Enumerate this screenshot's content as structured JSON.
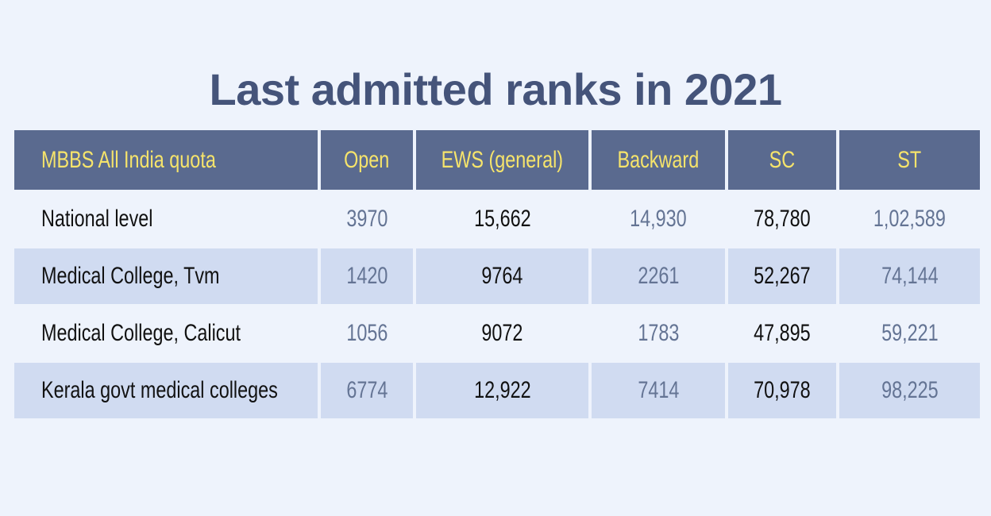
{
  "title": "Last admitted ranks in 2021",
  "table": {
    "headers": [
      "MBBS All India quota",
      "Open",
      "EWS (general)",
      "Backward",
      "SC",
      "ST"
    ],
    "rows": [
      {
        "label": "National level",
        "values": [
          "3970",
          "15,662",
          "14,930",
          "78,780",
          "1,02,589"
        ]
      },
      {
        "label": "Medical College, Tvm",
        "values": [
          "1420",
          "9764",
          "2261",
          "52,267",
          "74,144"
        ]
      },
      {
        "label": "Medical College, Calicut",
        "values": [
          "1056",
          "9072",
          "1783",
          "47,895",
          "59,221"
        ]
      },
      {
        "label": "Kerala govt medical colleges",
        "values": [
          "6774",
          "12,922",
          "7414",
          "70,978",
          "98,225"
        ]
      }
    ]
  },
  "colors": {
    "background": "#eef3fc",
    "header_bg": "#5a6a8f",
    "header_text": "#f6e46b",
    "title_text": "#45547a",
    "stripe_bg": "#d0dbf1",
    "muted_text": "#647494",
    "dark_text": "#111111"
  }
}
